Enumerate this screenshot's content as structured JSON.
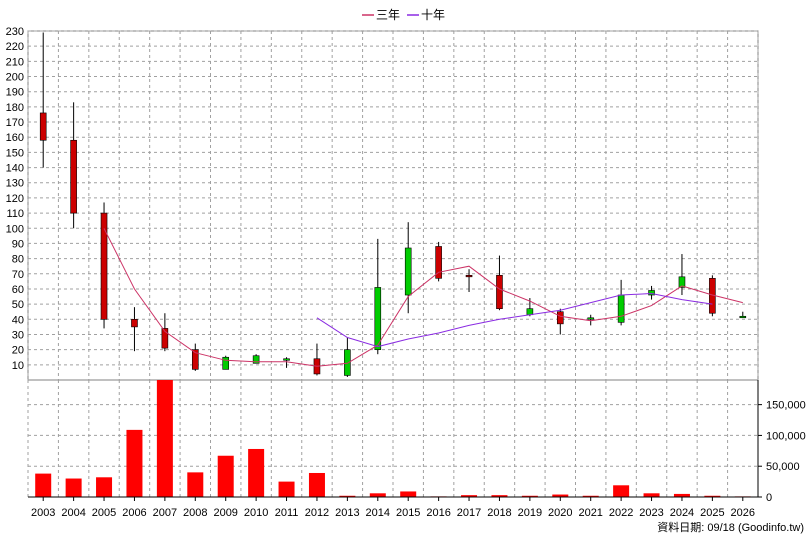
{
  "legend": [
    {
      "label": "三年",
      "color": "#cc3366"
    },
    {
      "label": "十年",
      "color": "#8a2be2"
    }
  ],
  "source_text": "資料日期: 09/18  (Goodinfo.tw)",
  "chart_data": [
    {
      "type": "candlestick",
      "grid": true,
      "ylim": [
        0,
        230
      ],
      "y_ticks": [
        10,
        20,
        30,
        40,
        50,
        60,
        70,
        80,
        90,
        100,
        110,
        120,
        130,
        140,
        150,
        160,
        170,
        180,
        190,
        200,
        210,
        220,
        230
      ],
      "x": [
        "2003",
        "2004",
        "2005",
        "2006",
        "2007",
        "2008",
        "2009",
        "2010",
        "2011",
        "2012",
        "2013",
        "2014",
        "2015",
        "2016",
        "2017",
        "2018",
        "2019",
        "2020",
        "2021",
        "2022",
        "2023",
        "2024",
        "2025",
        "2026"
      ],
      "candles": [
        {
          "open": 176,
          "close": 158,
          "high": 229,
          "low": 140
        },
        {
          "open": 158,
          "close": 110,
          "high": 183,
          "low": 100
        },
        {
          "open": 110,
          "close": 40,
          "high": 117,
          "low": 34
        },
        {
          "open": 40,
          "close": 35,
          "high": 48,
          "low": 19
        },
        {
          "open": 34,
          "close": 21,
          "high": 44,
          "low": 19
        },
        {
          "open": 20,
          "close": 7,
          "high": 24,
          "low": 6
        },
        {
          "open": 7,
          "close": 15,
          "high": 16,
          "low": 7
        },
        {
          "open": 11,
          "close": 16,
          "high": 17,
          "low": 11
        },
        {
          "open": 13,
          "close": 14,
          "high": 15,
          "low": 8
        },
        {
          "open": 14,
          "close": 4,
          "high": 24,
          "low": 3
        },
        {
          "open": 3,
          "close": 20,
          "high": 28,
          "low": 2
        },
        {
          "open": 20,
          "close": 61,
          "high": 93,
          "low": 17
        },
        {
          "open": 56,
          "close": 87,
          "high": 104,
          "low": 44
        },
        {
          "open": 88,
          "close": 67,
          "high": 91,
          "low": 65
        },
        {
          "open": 69,
          "close": 68,
          "high": 73,
          "low": 58
        },
        {
          "open": 69,
          "close": 47,
          "high": 82,
          "low": 46
        },
        {
          "open": 43,
          "close": 47,
          "high": 54,
          "low": 42
        },
        {
          "open": 45,
          "close": 37,
          "high": 47,
          "low": 30
        },
        {
          "open": 41,
          "close": 41,
          "high": 43,
          "low": 36
        },
        {
          "open": 38,
          "close": 56,
          "high": 66,
          "low": 36
        },
        {
          "open": 56,
          "close": 59,
          "high": 62,
          "low": 53
        },
        {
          "open": 61,
          "close": 68,
          "high": 83,
          "low": 56
        },
        {
          "open": 67,
          "close": 44,
          "high": 69,
          "low": 42
        },
        {
          "open": 42,
          "close": 42,
          "high": 45,
          "low": 41
        }
      ],
      "series": [
        {
          "name": "三年",
          "color": "#cc3366",
          "values": [
            null,
            null,
            100,
            60,
            32,
            18,
            13,
            12,
            12,
            9,
            11,
            23,
            55,
            71,
            75,
            60,
            52,
            42,
            39,
            42,
            49,
            62,
            56,
            51
          ]
        },
        {
          "name": "十年",
          "color": "#8a2be2",
          "values": [
            null,
            null,
            null,
            null,
            null,
            null,
            null,
            null,
            null,
            null,
            null,
            null,
            null,
            null,
            null,
            null,
            null,
            null,
            null,
            null,
            null,
            null,
            null,
            null
          ],
          "partial": {
            "start": "2012",
            "values": [
              41,
              28,
              22,
              27,
              31,
              36,
              40,
              43,
              46,
              51,
              56,
              57,
              53,
              50
            ]
          }
        }
      ]
    },
    {
      "type": "bar",
      "grid": true,
      "ylim": [
        0,
        190000
      ],
      "y_ticks": [
        0,
        50000,
        100000,
        150000
      ],
      "y_tick_labels": [
        "0",
        "50,000",
        "100,000",
        "150,000"
      ],
      "categories": [
        "2003",
        "2004",
        "2005",
        "2006",
        "2007",
        "2008",
        "2009",
        "2010",
        "2011",
        "2012",
        "2013",
        "2014",
        "2015",
        "2016",
        "2017",
        "2018",
        "2019",
        "2020",
        "2021",
        "2022",
        "2023",
        "2024",
        "2025",
        "2026"
      ],
      "values": [
        38000,
        30000,
        32000,
        109000,
        190000,
        40000,
        67000,
        78000,
        25000,
        39000,
        2000,
        6000,
        9000,
        1000,
        3000,
        3000,
        2000,
        4000,
        2000,
        19000,
        6000,
        5000,
        2000,
        1000
      ],
      "color": "#ff0000"
    }
  ]
}
